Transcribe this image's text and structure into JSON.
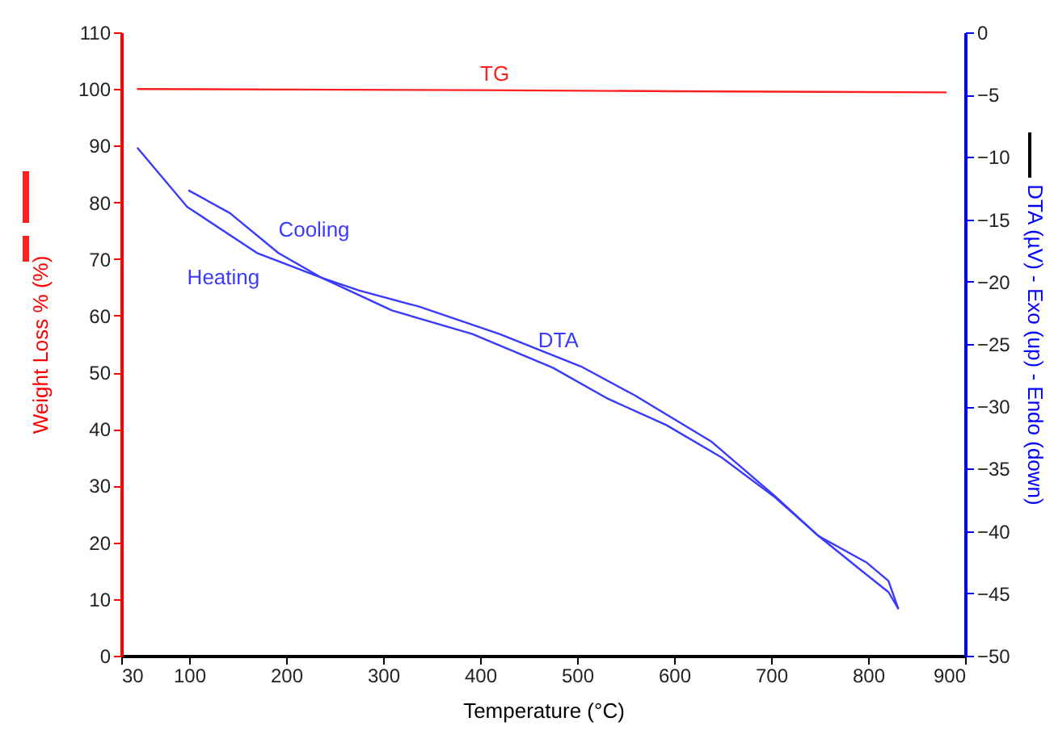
{
  "chart_data": {
    "type": "line",
    "xlabel": "Temperature (°C)",
    "ylabel": "Weight Loss % (%)",
    "y2label": "DTA (µV) - Exo (up) - Endo (down)",
    "xlim": [
      30,
      900
    ],
    "xticks": [
      30,
      100,
      200,
      300,
      400,
      500,
      600,
      700,
      800,
      900
    ],
    "ylim": [
      0,
      110
    ],
    "yticks": [
      0,
      10,
      20,
      30,
      40,
      50,
      60,
      70,
      80,
      90,
      100,
      110
    ],
    "y2lim": [
      -50,
      0
    ],
    "y2ticks": [
      -50,
      -45,
      -40,
      -35,
      -30,
      -25,
      -20,
      -15,
      -10,
      -5,
      0
    ],
    "grid": false,
    "marker": "none",
    "line_style": "solid",
    "annotations": [
      "DTA"
    ],
    "series": [
      {
        "name": "TG",
        "color": "#ff2020",
        "x": [
          47,
          200,
          400,
          600,
          880
        ],
        "values": [
          100,
          99.9,
          99.8,
          99.6,
          99.4
        ]
      },
      {
        "name": "Heating",
        "color": "#3a3aff",
        "axis": "y2",
        "x": [
          47,
          98,
          170,
          237,
          309,
          392,
          475,
          532,
          592,
          649,
          704,
          749,
          792,
          821,
          831
        ],
        "values": [
          -9.3,
          -14.0,
          -17.7,
          -19.7,
          -22.3,
          -24.2,
          -26.9,
          -29.4,
          -31.5,
          -34.1,
          -37.3,
          -40.4,
          -43.1,
          -44.9,
          -46.2
        ]
      },
      {
        "name": "Cooling",
        "color": "#3a3aff",
        "axis": "y2",
        "x": [
          100,
          142,
          192,
          237,
          275,
          337,
          420,
          504,
          559,
          638,
          704,
          749,
          798,
          821,
          831
        ],
        "values": [
          -12.7,
          -14.5,
          -17.7,
          -19.7,
          -20.7,
          -22.0,
          -24.2,
          -26.8,
          -29.1,
          -32.8,
          -37.2,
          -40.4,
          -42.5,
          -44.0,
          -46.2
        ]
      }
    ]
  }
}
